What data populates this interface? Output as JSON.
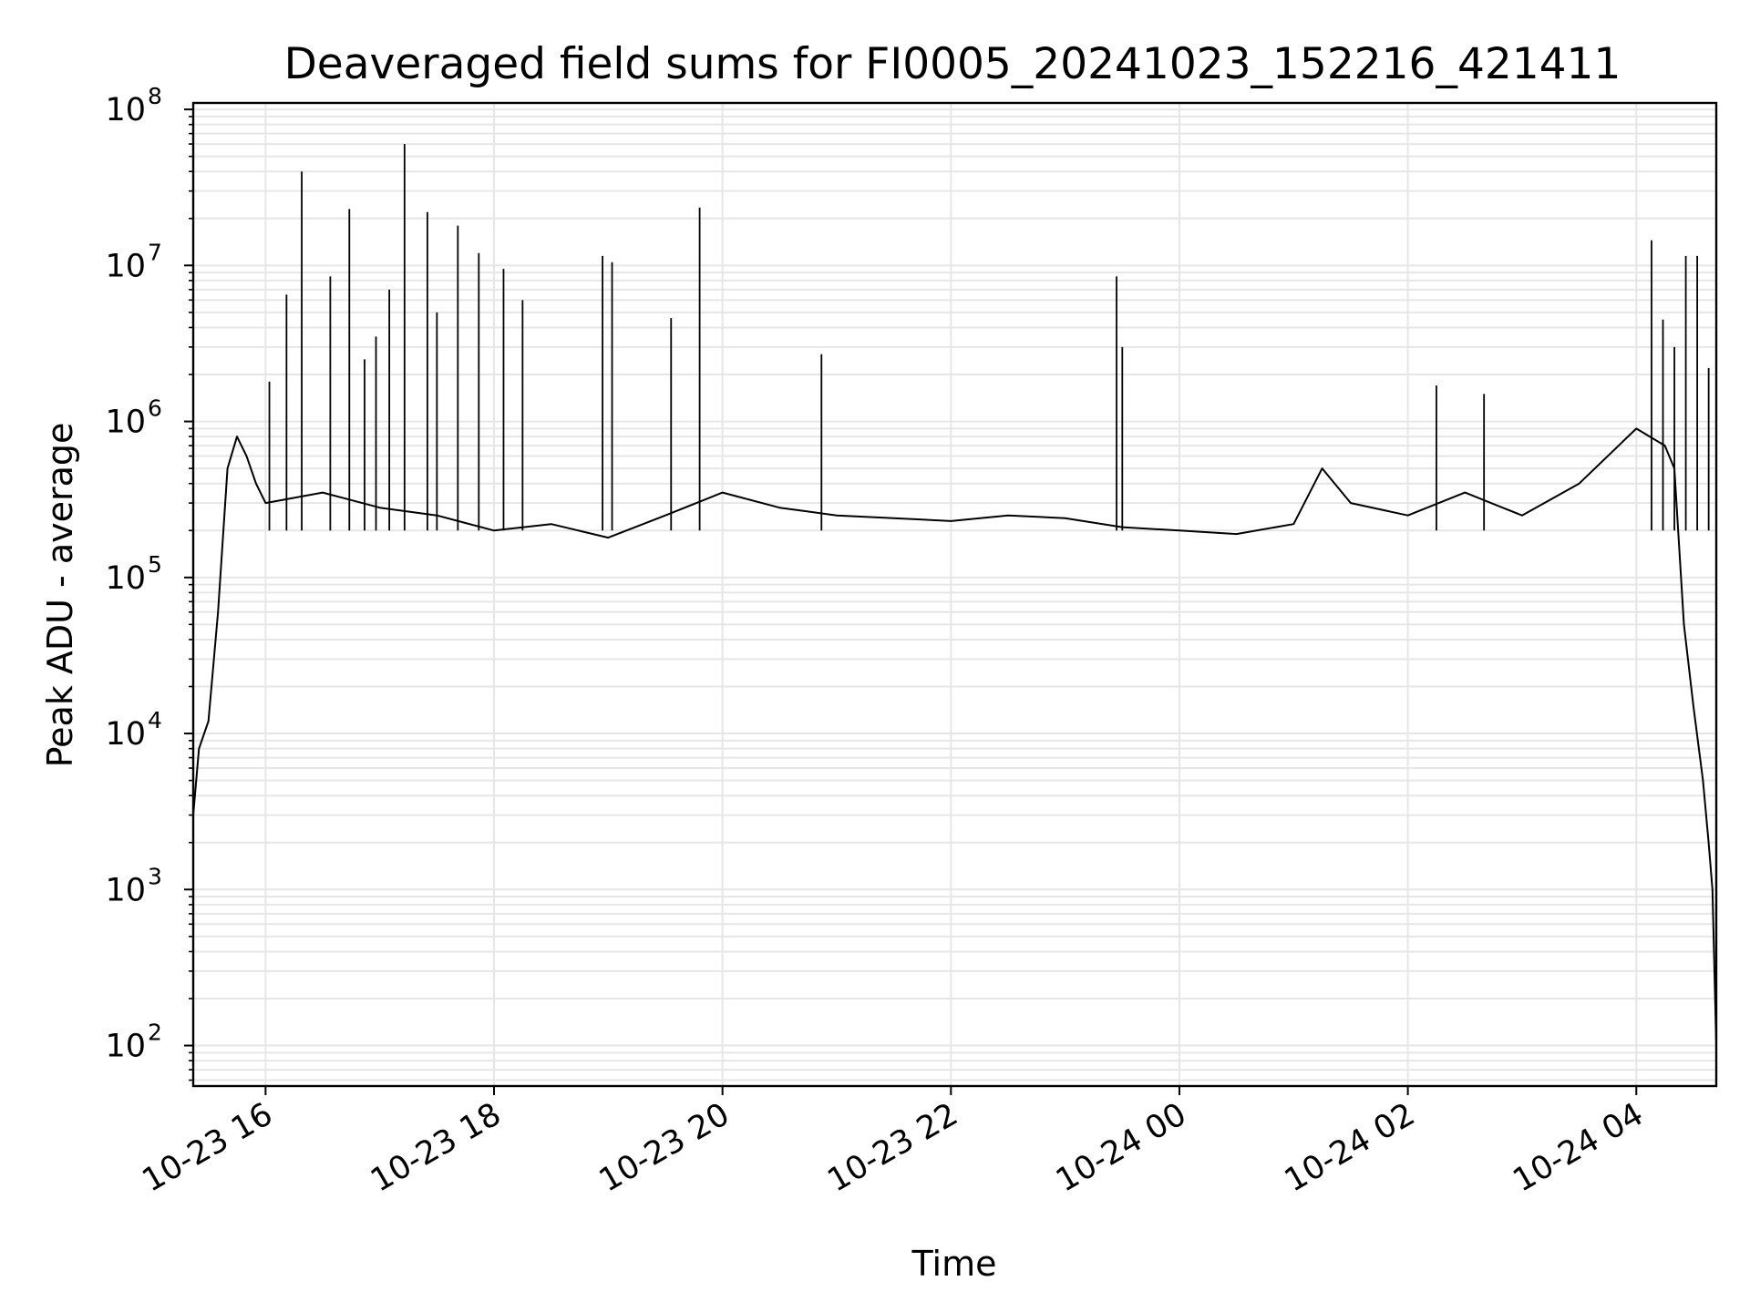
{
  "chart_data": {
    "type": "line",
    "title": "Deaveraged field sums for FI0005_20241023_152216_421411",
    "xlabel": "Time",
    "ylabel": "Peak ADU - average",
    "yscale": "log",
    "grid": true,
    "line_color": "#000000",
    "grid_color": "#e6e6e6",
    "xlim": [
      "2024-10-23 15:22",
      "2024-10-24 04:42"
    ],
    "ylim": [
      55,
      110000000
    ],
    "x_ticks": [
      {
        "value": "2024-10-23 16:00",
        "label": "10-23 16"
      },
      {
        "value": "2024-10-23 18:00",
        "label": "10-23 18"
      },
      {
        "value": "2024-10-23 20:00",
        "label": "10-23 20"
      },
      {
        "value": "2024-10-23 22:00",
        "label": "10-23 22"
      },
      {
        "value": "2024-10-24 00:00",
        "label": "10-24 00"
      },
      {
        "value": "2024-10-24 02:00",
        "label": "10-24 02"
      },
      {
        "value": "2024-10-24 04:00",
        "label": "10-24 04"
      }
    ],
    "y_ticks": [
      {
        "value": 100,
        "base": "10",
        "exp": "2"
      },
      {
        "value": 1000,
        "base": "10",
        "exp": "3"
      },
      {
        "value": 10000,
        "base": "10",
        "exp": "4"
      },
      {
        "value": 100000,
        "base": "10",
        "exp": "5"
      },
      {
        "value": 1000000,
        "base": "10",
        "exp": "6"
      },
      {
        "value": 10000000,
        "base": "10",
        "exp": "7"
      },
      {
        "value": 100000000,
        "base": "10",
        "exp": "8"
      }
    ],
    "series": [
      {
        "x": [
          "2024-10-23 15:22",
          "2024-10-23 15:25",
          "2024-10-23 15:30",
          "2024-10-23 15:35",
          "2024-10-23 15:40",
          "2024-10-23 15:45",
          "2024-10-23 15:50",
          "2024-10-23 15:55",
          "2024-10-23 16:00",
          "2024-10-23 16:30",
          "2024-10-23 17:00",
          "2024-10-23 17:30",
          "2024-10-23 18:00",
          "2024-10-23 18:30",
          "2024-10-23 19:00",
          "2024-10-23 19:30",
          "2024-10-23 20:00",
          "2024-10-23 20:30",
          "2024-10-23 21:00",
          "2024-10-23 21:30",
          "2024-10-23 22:00",
          "2024-10-23 22:30",
          "2024-10-23 23:00",
          "2024-10-23 23:30",
          "2024-10-24 00:00",
          "2024-10-24 00:30",
          "2024-10-24 01:00",
          "2024-10-24 01:15",
          "2024-10-24 01:30",
          "2024-10-24 02:00",
          "2024-10-24 02:30",
          "2024-10-24 03:00",
          "2024-10-24 03:30",
          "2024-10-24 04:00",
          "2024-10-24 04:15",
          "2024-10-24 04:20",
          "2024-10-24 04:25",
          "2024-10-24 04:30",
          "2024-10-24 04:35",
          "2024-10-24 04:38",
          "2024-10-24 04:40",
          "2024-10-24 04:42"
        ],
        "y": [
          3000,
          8000,
          12000,
          60000,
          500000,
          800000,
          600000,
          400000,
          300000,
          350000,
          280000,
          250000,
          200000,
          220000,
          180000,
          250000,
          350000,
          280000,
          250000,
          240000,
          230000,
          250000,
          240000,
          210000,
          200000,
          190000,
          220000,
          500000,
          300000,
          250000,
          350000,
          250000,
          400000,
          900000,
          700000,
          500000,
          50000,
          15000,
          5000,
          2000,
          1000,
          100
        ]
      }
    ],
    "spikes": [
      {
        "x": "2024-10-23 16:02",
        "y": 1800000
      },
      {
        "x": "2024-10-23 16:11",
        "y": 6500000
      },
      {
        "x": "2024-10-23 16:19",
        "y": 40000000
      },
      {
        "x": "2024-10-23 16:34",
        "y": 8500000
      },
      {
        "x": "2024-10-23 16:44",
        "y": 23000000
      },
      {
        "x": "2024-10-23 16:52",
        "y": 2500000
      },
      {
        "x": "2024-10-23 16:58",
        "y": 3500000
      },
      {
        "x": "2024-10-23 17:05",
        "y": 7000000
      },
      {
        "x": "2024-10-23 17:13",
        "y": 60000000
      },
      {
        "x": "2024-10-23 17:25",
        "y": 22000000
      },
      {
        "x": "2024-10-23 17:30",
        "y": 5000000
      },
      {
        "x": "2024-10-23 17:41",
        "y": 18000000
      },
      {
        "x": "2024-10-23 17:52",
        "y": 12000000
      },
      {
        "x": "2024-10-23 18:05",
        "y": 9500000
      },
      {
        "x": "2024-10-23 18:15",
        "y": 6000000
      },
      {
        "x": "2024-10-23 18:57",
        "y": 11500000
      },
      {
        "x": "2024-10-23 19:02",
        "y": 10500000
      },
      {
        "x": "2024-10-23 19:33",
        "y": 4600000
      },
      {
        "x": "2024-10-23 19:48",
        "y": 23500000
      },
      {
        "x": "2024-10-23 20:52",
        "y": 2700000
      },
      {
        "x": "2024-10-23 23:27",
        "y": 8500000
      },
      {
        "x": "2024-10-23 23:30",
        "y": 3000000
      },
      {
        "x": "2024-10-24 02:15",
        "y": 1700000
      },
      {
        "x": "2024-10-24 02:40",
        "y": 1500000
      },
      {
        "x": "2024-10-24 04:08",
        "y": 14500000
      },
      {
        "x": "2024-10-24 04:14",
        "y": 4500000
      },
      {
        "x": "2024-10-24 04:20",
        "y": 3000000
      },
      {
        "x": "2024-10-24 04:26",
        "y": 11500000
      },
      {
        "x": "2024-10-24 04:32",
        "y": 11500000
      },
      {
        "x": "2024-10-24 04:38",
        "y": 2200000
      }
    ]
  }
}
